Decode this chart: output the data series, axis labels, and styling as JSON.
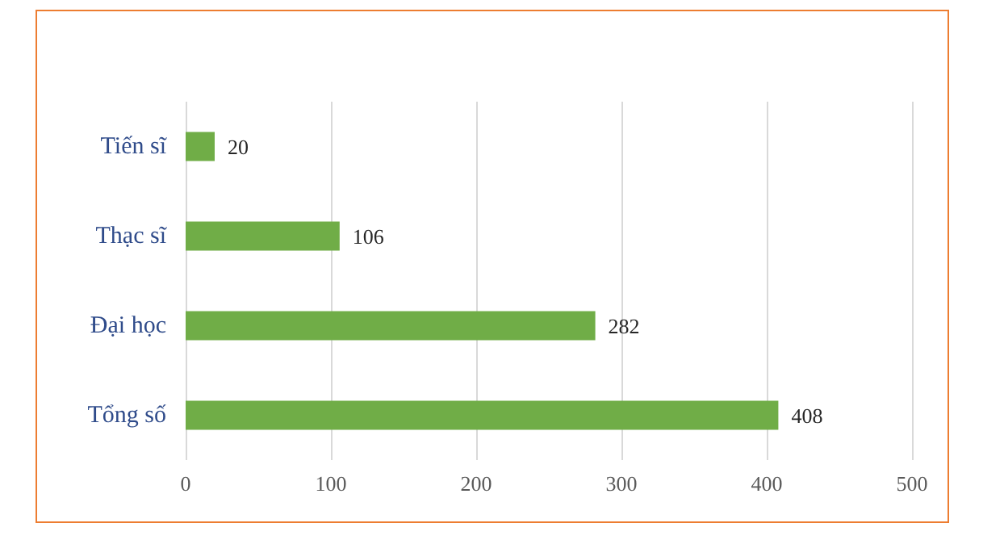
{
  "chart_data": {
    "type": "bar",
    "orientation": "horizontal",
    "categories": [
      "Tiến sĩ",
      "Thạc sĩ",
      "Đại học",
      "Tổng số"
    ],
    "values": [
      20,
      106,
      282,
      408
    ],
    "color": "#70ad47",
    "xlim": [
      0,
      500
    ],
    "xticks": [
      0,
      100,
      200,
      300,
      400,
      500
    ],
    "grid": "x",
    "data_labels": true
  }
}
